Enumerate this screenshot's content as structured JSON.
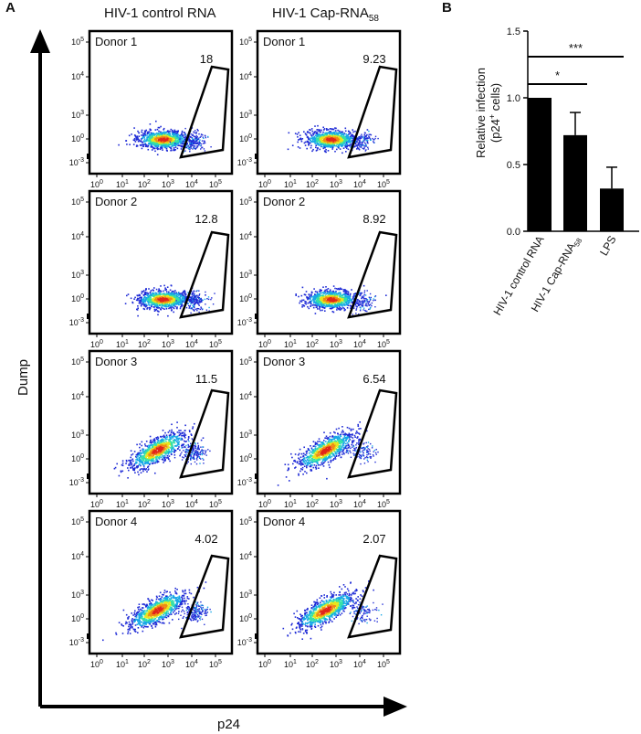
{
  "panel_labels": {
    "a": "A",
    "b": "B"
  },
  "panel_a": {
    "column_titles": [
      "HIV-1 control RNA",
      "HIV-1 Cap-RNA"
    ],
    "cap_rna_subscript": "58",
    "y_axis_label": "Dump",
    "x_axis_label": "p24",
    "x_ticks": [
      "10^0",
      "10^1",
      "10^2",
      "10^3",
      "10^4",
      "10^5"
    ],
    "y_ticks": [
      "10^5",
      "10^4",
      "10^3",
      "10^0",
      "10^-3"
    ],
    "donors": [
      "Donor 1",
      "Donor 2",
      "Donor 3",
      "Donor 4"
    ],
    "gate_values_control": [
      "18",
      "12.8",
      "11.5",
      "4.02"
    ],
    "gate_values_cap": [
      "9.23",
      "8.92",
      "6.54",
      "2.07"
    ]
  },
  "chart_data": {
    "type": "bar",
    "panel": "B",
    "categories": [
      "HIV-1 control RNA",
      "HIV-1 Cap-RNA58",
      "LPS"
    ],
    "category_display": [
      {
        "main": "HIV-1 control RNA",
        "sub": ""
      },
      {
        "main": "HIV-1 Cap-RNA",
        "sub": "58"
      },
      {
        "main": "LPS",
        "sub": ""
      }
    ],
    "values": [
      1.0,
      0.72,
      0.32
    ],
    "errors": [
      0,
      0.17,
      0.16
    ],
    "ylabel_line1": "Relative infection",
    "ylabel_line2_prefix": "(p24",
    "ylabel_line2_sup": "+",
    "ylabel_line2_suffix": " cells)",
    "ylim": [
      0,
      1.5
    ],
    "yticks": [
      0.0,
      0.5,
      1.0,
      1.5
    ],
    "ytick_labels": [
      "0.0",
      "0.5",
      "1.0",
      "1.5"
    ],
    "significance": [
      {
        "from": 0,
        "to": 1,
        "label": "*"
      },
      {
        "from": 0,
        "to": 2,
        "label": "***"
      }
    ],
    "bar_color": "#000000"
  }
}
